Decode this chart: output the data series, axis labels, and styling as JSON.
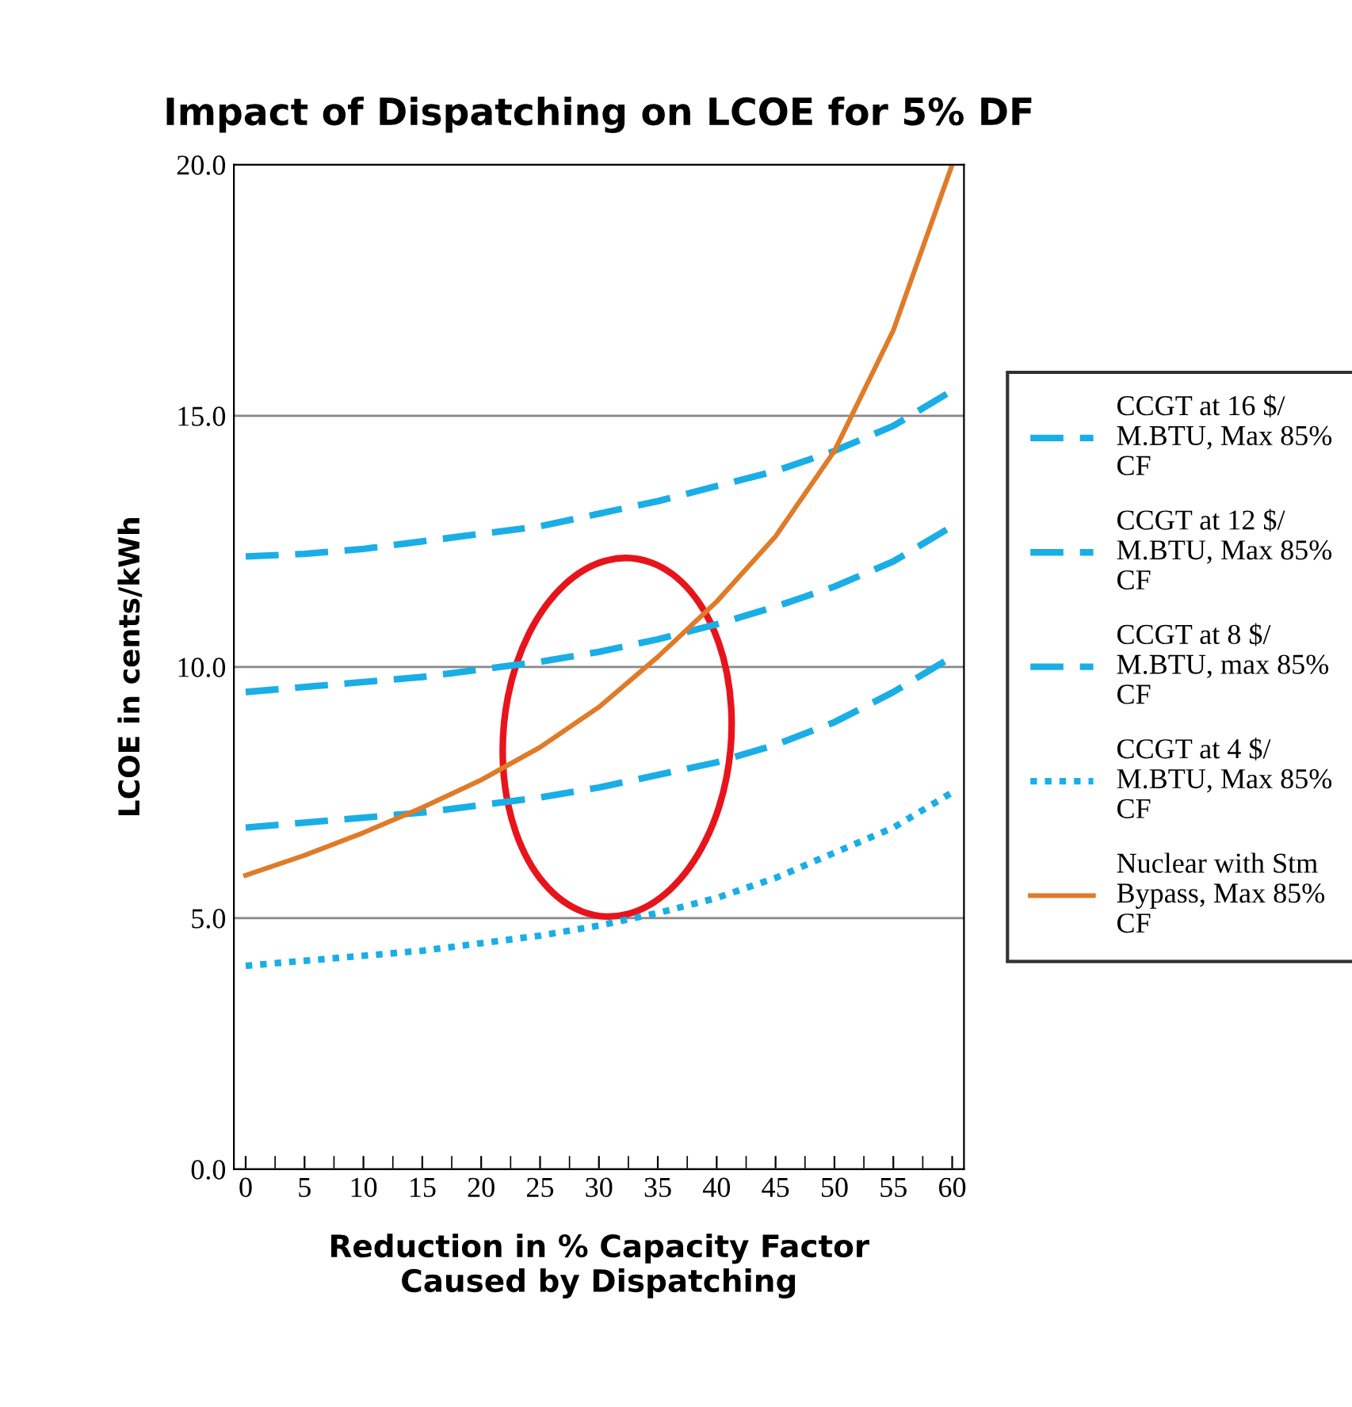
{
  "chart_data": {
    "type": "line",
    "title": "Impact of Dispatching on LCOE for 5% DF",
    "xlabel": "Reduction in % Capacity Factor\nCaused by Dispatching",
    "ylabel": "LCOE in cents/kWh",
    "x": [
      0,
      5,
      10,
      15,
      20,
      25,
      30,
      35,
      40,
      45,
      50,
      55,
      60
    ],
    "series": [
      {
        "name": "CCGT at 16 $/\nM.BTU, Max 85%\nCF",
        "color": "#1aaee6",
        "line_style": "dashed",
        "values": [
          12.2,
          12.25,
          12.35,
          12.5,
          12.65,
          12.8,
          13.05,
          13.3,
          13.6,
          13.9,
          14.3,
          14.8,
          15.5
        ]
      },
      {
        "name": "CCGT at 12 $/\nM.BTU, Max 85%\nCF",
        "color": "#1aaee6",
        "line_style": "dashed",
        "values": [
          9.5,
          9.6,
          9.7,
          9.8,
          9.95,
          10.1,
          10.3,
          10.55,
          10.85,
          11.2,
          11.6,
          12.1,
          12.8
        ]
      },
      {
        "name": "CCGT at 8 $/\nM.BTU, max 85%\nCF",
        "color": "#1aaee6",
        "line_style": "dashed",
        "values": [
          6.8,
          6.9,
          7.0,
          7.1,
          7.25,
          7.4,
          7.6,
          7.85,
          8.1,
          8.45,
          8.9,
          9.5,
          10.2
        ]
      },
      {
        "name": "CCGT at 4 $/\nM.BTU, Max 85%\nCF",
        "color": "#1aaee6",
        "line_style": "dotted",
        "values": [
          4.05,
          4.15,
          4.25,
          4.35,
          4.5,
          4.65,
          4.85,
          5.1,
          5.4,
          5.8,
          6.3,
          6.8,
          7.5
        ]
      },
      {
        "name": "Nuclear with Stm\nBypass, Max 85%\nCF",
        "color": "#e07b28",
        "line_style": "solid",
        "values": [
          5.85,
          6.25,
          6.7,
          7.2,
          7.75,
          8.4,
          9.2,
          10.2,
          11.3,
          12.6,
          14.3,
          16.7,
          20.0
        ]
      }
    ],
    "xlim": [
      -1,
      61
    ],
    "xticks": [
      0,
      5,
      10,
      15,
      20,
      25,
      30,
      35,
      40,
      45,
      50,
      55,
      60
    ],
    "ylim": [
      0,
      20
    ],
    "yticks": [
      {
        "value": 0,
        "label": "0.0"
      },
      {
        "value": 5,
        "label": "5.0"
      },
      {
        "value": 10,
        "label": "10.0"
      },
      {
        "value": 15,
        "label": "15.0"
      },
      {
        "value": 20,
        "label": "20.0"
      }
    ],
    "grid": "y",
    "legend": "right"
  }
}
